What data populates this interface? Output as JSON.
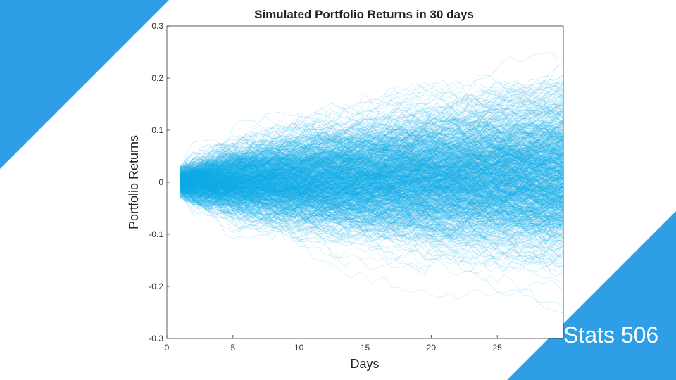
{
  "slide": {
    "course_label": "Stats 506",
    "accent_color": "#2E9FE6"
  },
  "chart_data": {
    "type": "line",
    "title": "Simulated Portfolio Returns in 30 days",
    "xlabel": "Days",
    "ylabel": "Portfolio Returns",
    "xlim": [
      0,
      30
    ],
    "ylim": [
      -0.3,
      0.3
    ],
    "x_ticks": [
      0,
      5,
      10,
      15,
      20,
      25
    ],
    "y_ticks": [
      -0.3,
      -0.2,
      -0.1,
      0,
      0.1,
      0.2,
      0.3
    ],
    "x_tick_labels": [
      "0",
      "5",
      "10",
      "15",
      "20",
      "25"
    ],
    "y_tick_labels": [
      "-0.3",
      "-0.2",
      "-0.1",
      "0",
      "0.1",
      "0.2",
      "0.3"
    ],
    "grid": false,
    "series_color": "#13AEE6",
    "simulation": {
      "num_paths": 1000,
      "days": [
        1,
        30
      ],
      "start_return_range": [
        -0.03,
        0.03
      ],
      "approx_envelope_day_30": [
        -0.21,
        0.28
      ]
    }
  }
}
